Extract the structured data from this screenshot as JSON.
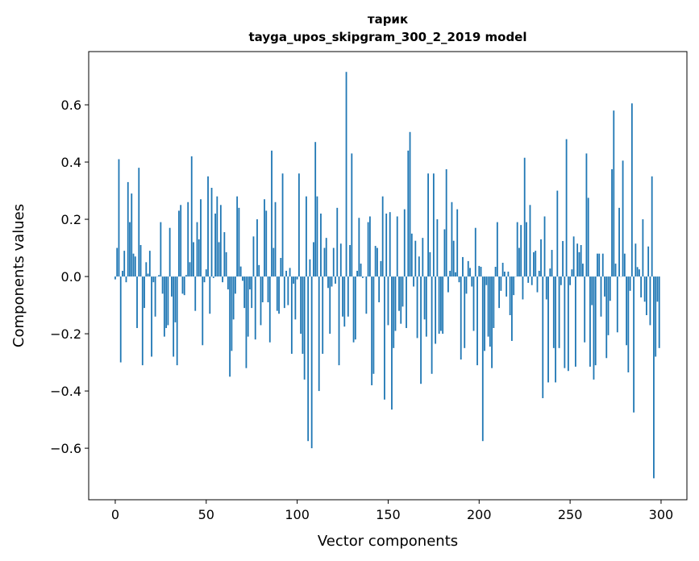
{
  "chart_data": {
    "type": "bar",
    "title": "тарик",
    "subtitle": "tayga_upos_skipgram_300_2_2019 model",
    "xlabel": "Vector components",
    "ylabel": "Components values",
    "xlim": [
      -14.6,
      314.2
    ],
    "ylim": [
      -0.78,
      0.786
    ],
    "xticks": [
      0,
      50,
      100,
      150,
      200,
      250,
      300
    ],
    "xtick_labels": [
      "0",
      "50",
      "100",
      "150",
      "200",
      "250",
      "300"
    ],
    "yticks": [
      -0.6,
      -0.4,
      -0.2,
      0.0,
      0.2,
      0.4,
      0.6
    ],
    "ytick_labels": [
      "−0.6",
      "−0.4",
      "−0.2",
      "0.0",
      "0.2",
      "0.4",
      "0.6"
    ],
    "grid": false,
    "color": "#1f77b4",
    "values": [
      -0.01,
      0.1,
      0.41,
      -0.3,
      0.02,
      0.09,
      -0.02,
      0.33,
      0.19,
      0.29,
      0.08,
      0.07,
      -0.18,
      0.38,
      0.11,
      -0.31,
      -0.11,
      0.05,
      0.01,
      0.09,
      -0.28,
      -0.02,
      -0.14,
      0.0,
      0.005,
      0.19,
      -0.06,
      -0.21,
      -0.18,
      -0.17,
      0.17,
      -0.07,
      -0.28,
      -0.16,
      -0.31,
      0.23,
      0.25,
      -0.06,
      -0.065,
      0.005,
      0.26,
      0.05,
      0.42,
      0.12,
      -0.12,
      0.19,
      0.13,
      0.27,
      -0.24,
      -0.02,
      0.025,
      0.35,
      -0.13,
      0.31,
      -0.005,
      0.22,
      0.28,
      0.12,
      0.25,
      -0.02,
      0.155,
      0.085,
      -0.045,
      -0.35,
      -0.26,
      -0.15,
      -0.06,
      0.28,
      0.24,
      0.035,
      -0.015,
      -0.11,
      -0.32,
      -0.21,
      -0.045,
      -0.11,
      0.14,
      -0.22,
      0.2,
      0.04,
      -0.17,
      -0.09,
      0.27,
      0.23,
      -0.09,
      -0.23,
      0.44,
      0.1,
      0.26,
      -0.12,
      -0.13,
      0.065,
      0.36,
      -0.11,
      0.02,
      -0.1,
      0.03,
      -0.27,
      -0.025,
      -0.15,
      -0.01,
      0.36,
      -0.2,
      -0.27,
      -0.36,
      0.28,
      -0.575,
      0.06,
      -0.6,
      0.12,
      0.47,
      0.28,
      -0.4,
      0.22,
      -0.27,
      0.1,
      0.135,
      -0.04,
      -0.2,
      -0.035,
      0.1,
      -0.025,
      0.24,
      -0.31,
      0.115,
      -0.14,
      -0.175,
      0.715,
      -0.14,
      0.11,
      0.43,
      -0.23,
      -0.22,
      0.02,
      0.205,
      0.045,
      -0.005,
      0.0,
      -0.13,
      0.19,
      0.21,
      -0.38,
      -0.34,
      0.107,
      0.1,
      -0.09,
      0.054,
      0.28,
      -0.43,
      0.22,
      -0.17,
      0.225,
      -0.465,
      -0.25,
      -0.19,
      0.21,
      -0.12,
      -0.165,
      -0.105,
      0.235,
      -0.18,
      0.44,
      0.505,
      0.15,
      -0.035,
      0.125,
      -0.215,
      0.07,
      -0.375,
      0.135,
      -0.15,
      -0.21,
      0.36,
      0.085,
      -0.34,
      0.36,
      -0.235,
      0.2,
      -0.2,
      -0.19,
      -0.2,
      0.165,
      0.375,
      -0.055,
      0.02,
      0.26,
      0.125,
      0.015,
      0.235,
      -0.02,
      -0.29,
      0.068,
      -0.25,
      -0.06,
      0.054,
      0.03,
      -0.035,
      -0.19,
      0.17,
      -0.31,
      0.037,
      0.034,
      -0.575,
      -0.26,
      -0.03,
      -0.21,
      -0.245,
      -0.32,
      -0.18,
      0.034,
      0.19,
      -0.11,
      -0.05,
      0.048,
      0.017,
      -0.07,
      0.017,
      -0.135,
      -0.225,
      -0.065,
      0.0,
      0.19,
      0.1,
      0.18,
      -0.08,
      0.415,
      0.19,
      -0.022,
      0.25,
      -0.03,
      0.085,
      0.09,
      -0.055,
      0.02,
      0.13,
      -0.425,
      0.21,
      -0.08,
      -0.37,
      0.028,
      0.093,
      -0.25,
      -0.37,
      0.3,
      -0.25,
      -0.03,
      0.124,
      -0.32,
      0.48,
      -0.33,
      -0.03,
      0.025,
      0.14,
      -0.315,
      0.115,
      0.085,
      0.11,
      0.045,
      -0.23,
      0.43,
      0.275,
      -0.315,
      -0.1,
      -0.36,
      -0.31,
      0.08,
      0.08,
      -0.14,
      0.08,
      -0.07,
      -0.285,
      -0.205,
      -0.085,
      0.375,
      0.58,
      0.045,
      -0.195,
      0.24,
      0.0,
      0.405,
      0.08,
      -0.24,
      -0.335,
      -0.05,
      0.605,
      -0.475,
      0.115,
      0.033,
      0.025,
      -0.073,
      0.2,
      -0.088,
      -0.135,
      0.105,
      -0.17,
      0.35,
      -0.705,
      -0.28,
      -0.088,
      -0.25
    ]
  }
}
